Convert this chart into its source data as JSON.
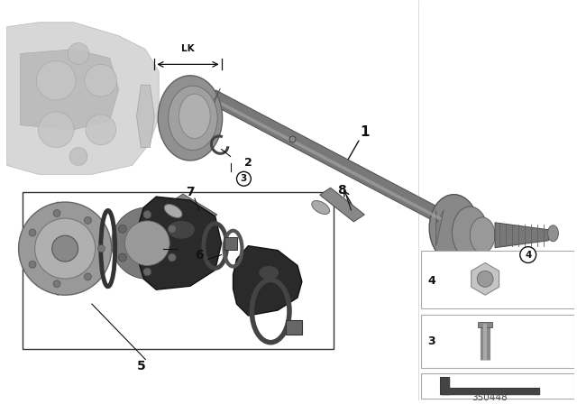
{
  "bg_color": "#ffffff",
  "part_number": "350448",
  "text_color": "#111111",
  "shaft_color": "#707070",
  "shaft_dark": "#505050",
  "shaft_highlight": "#a0a0a0",
  "boot_color": "#2a2a2a",
  "boot_dark": "#111111",
  "clamp_color": "#555555",
  "flange_color": "#888888",
  "housing_color": "#c8c8c8",
  "housing_edge": "#999999",
  "sidebar_box_color": "#f0f0f0",
  "sidebar_box_edge": "#bbbbbb",
  "label_fs": 9,
  "anno_fs": 7
}
